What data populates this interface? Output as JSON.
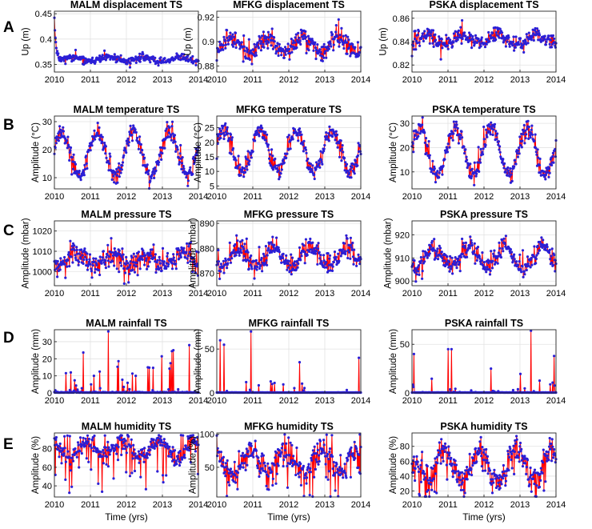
{
  "figure": {
    "x_axis_label": "Time (yrs)",
    "colors": {
      "line": "#ff0000",
      "marker": "#2b1fd6",
      "grid": "#e2e2e2",
      "axis": "#262626"
    }
  },
  "chart_data": [
    {
      "row": "A",
      "type": "line",
      "title": "MALM displacement TS",
      "ylabel": "Up (m)",
      "xlim": [
        2010,
        2014
      ],
      "ylim": [
        0.335,
        0.455
      ],
      "yticks": [
        0.35,
        0.4,
        0.45
      ],
      "ytick_labels": [
        "0.35",
        "0.4",
        "0.45"
      ],
      "xticks": [
        2010,
        2011,
        2012,
        2013,
        2014
      ],
      "xtick_labels": [
        "2010",
        "2011",
        "2012",
        "2013",
        "2014"
      ],
      "kind": "disp",
      "mean": 0.36,
      "amp": 0.004,
      "phase": 0.5,
      "noise": 0.005,
      "spike": 0.01,
      "init": 0.442,
      "tau": 0.05,
      "seed": 11,
      "series": [
        {
          "name": "MALM",
          "x": [
            2010.0,
            2010.1,
            2010.2,
            2010.5,
            2011.0,
            2011.5,
            2012.0,
            2012.5,
            2013.0,
            2013.5,
            2014.0
          ],
          "y": [
            0.442,
            0.372,
            0.365,
            0.36,
            0.362,
            0.358,
            0.361,
            0.357,
            0.362,
            0.356,
            0.36
          ]
        }
      ]
    },
    {
      "row": "A",
      "type": "line",
      "title": "MFKG displacement TS",
      "ylabel": "Up (m)",
      "xlim": [
        2010,
        2014
      ],
      "ylim": [
        0.875,
        0.925
      ],
      "yticks": [
        0.88,
        0.9,
        0.92
      ],
      "ytick_labels": [
        "0.88",
        "0.9",
        "0.92"
      ],
      "xticks": [
        2010,
        2011,
        2012,
        2013,
        2014
      ],
      "xtick_labels": [
        "2010",
        "2011",
        "2012",
        "2013",
        "2014"
      ],
      "kind": "disp",
      "mean": 0.897,
      "amp": 0.006,
      "phase": 0.4,
      "noise": 0.005,
      "spike": 0.01,
      "seed": 12,
      "series": [
        {
          "name": "MFKG",
          "x": [
            2010.0,
            2010.5,
            2011.0,
            2011.5,
            2012.0,
            2012.5,
            2013.0,
            2013.5,
            2014.0
          ],
          "y": [
            0.9,
            0.89,
            0.9,
            0.892,
            0.9,
            0.893,
            0.901,
            0.894,
            0.905
          ]
        }
      ]
    },
    {
      "row": "A",
      "type": "line",
      "title": "PSKA displacement TS",
      "ylabel": "Up (m)",
      "xlim": [
        2010,
        2014
      ],
      "ylim": [
        0.814,
        0.866
      ],
      "yticks": [
        0.82,
        0.84,
        0.86
      ],
      "ytick_labels": [
        "0.82",
        "0.84",
        "0.86"
      ],
      "xticks": [
        2010,
        2011,
        2012,
        2013,
        2014
      ],
      "xtick_labels": [
        "2010",
        "2011",
        "2012",
        "2013",
        "2014"
      ],
      "kind": "disp",
      "mean": 0.842,
      "amp": 0.004,
      "phase": 0.4,
      "noise": 0.0045,
      "spike": 0.009,
      "seed": 13,
      "series": [
        {
          "name": "PSKA",
          "x": [
            2010.0,
            2010.5,
            2011.0,
            2011.5,
            2012.0,
            2012.5,
            2013.0,
            2013.5,
            2014.0
          ],
          "y": [
            0.845,
            0.84,
            0.844,
            0.838,
            0.844,
            0.838,
            0.845,
            0.839,
            0.846
          ]
        }
      ]
    },
    {
      "row": "B",
      "type": "line",
      "title": "MALM temperature TS",
      "ylabel": "Amplitude (°C)",
      "xlim": [
        2010,
        2014
      ],
      "ylim": [
        6,
        32
      ],
      "yticks": [
        10,
        20,
        30
      ],
      "ytick_labels": [
        "10",
        "20",
        "30"
      ],
      "xticks": [
        2010,
        2011,
        2012,
        2013,
        2014
      ],
      "xtick_labels": [
        "2010",
        "2011",
        "2012",
        "2013",
        "2014"
      ],
      "kind": "temp",
      "mean": 18.5,
      "amp": 8,
      "phase": 0.2,
      "noise": 2.2,
      "spike": 4,
      "seed": 21,
      "series": [
        {
          "name": "MALM",
          "x": [
            2010.0,
            2010.4,
            2010.85,
            2011.4,
            2011.85,
            2012.4,
            2012.85,
            2013.4,
            2013.85,
            2014.0
          ],
          "y": [
            25,
            11,
            27,
            11,
            27,
            11,
            27,
            11,
            22,
            25
          ]
        }
      ]
    },
    {
      "row": "B",
      "type": "line",
      "title": "MFKG temperature TS",
      "ylabel": "Amplitude (°C)",
      "xlim": [
        2010,
        2014
      ],
      "ylim": [
        4,
        29
      ],
      "yticks": [
        5,
        10,
        15,
        20,
        25
      ],
      "ytick_labels": [
        "5",
        "10",
        "15",
        "20",
        "25"
      ],
      "xticks": [
        2010,
        2011,
        2012,
        2013,
        2014
      ],
      "xtick_labels": [
        "2010",
        "2011",
        "2012",
        "2013",
        "2014"
      ],
      "kind": "temp",
      "mean": 17,
      "amp": 7,
      "phase": 0.2,
      "noise": 2.2,
      "spike": 5,
      "seed": 22,
      "series": [
        {
          "name": "MFKG",
          "x": [
            2010.0,
            2010.4,
            2010.85,
            2011.4,
            2011.85,
            2012.4,
            2012.85,
            2013.4,
            2013.85,
            2014.0
          ],
          "y": [
            23,
            10,
            24,
            10,
            24,
            10,
            24,
            10,
            23,
            25
          ]
        }
      ]
    },
    {
      "row": "B",
      "type": "line",
      "title": "PSKA temperature TS",
      "ylabel": "Amplitude (°C)",
      "xlim": [
        2010,
        2014
      ],
      "ylim": [
        3,
        33
      ],
      "yticks": [
        10,
        20,
        30
      ],
      "ytick_labels": [
        "10",
        "20",
        "30"
      ],
      "xticks": [
        2010,
        2011,
        2012,
        2013,
        2014
      ],
      "xtick_labels": [
        "2010",
        "2011",
        "2012",
        "2013",
        "2014"
      ],
      "kind": "temp",
      "mean": 18.5,
      "amp": 9.5,
      "phase": 0.2,
      "noise": 2.5,
      "spike": 5,
      "seed": 23,
      "series": [
        {
          "name": "PSKA",
          "x": [
            2010.0,
            2010.4,
            2010.85,
            2011.4,
            2011.85,
            2012.4,
            2012.85,
            2013.4,
            2013.85,
            2014.0
          ],
          "y": [
            28,
            9,
            28,
            9,
            29,
            9,
            28,
            10,
            26,
            28
          ]
        }
      ]
    },
    {
      "row": "C",
      "type": "line",
      "title": "MALM pressure TS",
      "ylabel": "Amplitude (mbar)",
      "xlim": [
        2010,
        2014
      ],
      "ylim": [
        993,
        1025
      ],
      "yticks": [
        1000,
        1010,
        1020
      ],
      "ytick_labels": [
        "1000",
        "1010",
        "1020"
      ],
      "xticks": [
        2010,
        2011,
        2012,
        2013,
        2014
      ],
      "xtick_labels": [
        "2010",
        "2011",
        "2012",
        "2013",
        "2014"
      ],
      "kind": "pres",
      "mean": 1006,
      "amp": 3.5,
      "phase": 0.6,
      "noise": 4,
      "spike": 7,
      "seed": 31,
      "series": [
        {
          "name": "MALM",
          "x": [
            2010.0,
            2010.5,
            2011.0,
            2011.5,
            2012.0,
            2012.5,
            2013.0,
            2013.5,
            2014.0
          ],
          "y": [
            1003,
            1010,
            1002,
            1009,
            1003,
            1010,
            1004,
            1011,
            1004
          ]
        }
      ]
    },
    {
      "row": "C",
      "type": "line",
      "title": "MFKG pressure TS",
      "ylabel": "Amplitude (mbar)",
      "xlim": [
        2010,
        2014
      ],
      "ylim": [
        865,
        891
      ],
      "yticks": [
        870,
        880,
        890
      ],
      "ytick_labels": [
        "870",
        "880",
        "890"
      ],
      "xticks": [
        2010,
        2011,
        2012,
        2013,
        2014
      ],
      "xtick_labels": [
        "2010",
        "2011",
        "2012",
        "2013",
        "2014"
      ],
      "kind": "pres",
      "mean": 876.5,
      "amp": 4,
      "phase": 0.6,
      "noise": 3,
      "spike": 5,
      "seed": 32,
      "series": [
        {
          "name": "MFKG",
          "x": [
            2010.0,
            2010.5,
            2011.0,
            2011.5,
            2012.0,
            2012.5,
            2013.0,
            2013.5,
            2014.0
          ],
          "y": [
            874,
            881,
            873,
            880,
            873,
            880,
            874,
            881,
            874
          ]
        }
      ]
    },
    {
      "row": "C",
      "type": "line",
      "title": "PSKA pressure TS",
      "ylabel": "Amplitude (mbar)",
      "xlim": [
        2010,
        2014
      ],
      "ylim": [
        898,
        926
      ],
      "yticks": [
        900,
        910,
        920
      ],
      "ytick_labels": [
        "900",
        "910",
        "920"
      ],
      "xticks": [
        2010,
        2011,
        2012,
        2013,
        2014
      ],
      "xtick_labels": [
        "2010",
        "2011",
        "2012",
        "2013",
        "2014"
      ],
      "kind": "pres",
      "mean": 910.5,
      "amp": 4.5,
      "phase": 0.6,
      "noise": 3.2,
      "spike": 5,
      "seed": 33,
      "series": [
        {
          "name": "PSKA",
          "x": [
            2010.0,
            2010.5,
            2011.0,
            2011.5,
            2012.0,
            2012.5,
            2013.0,
            2013.5,
            2014.0
          ],
          "y": [
            907,
            916,
            906,
            915,
            906,
            915,
            907,
            916,
            908
          ]
        }
      ]
    },
    {
      "row": "D",
      "type": "line",
      "title": "MALM rainfall TS",
      "ylabel": "Amplitude (mm)",
      "xlim": [
        2010,
        2014
      ],
      "ylim": [
        0,
        37
      ],
      "yticks": [
        0,
        10,
        20,
        30
      ],
      "ytick_labels": [
        "0",
        "10",
        "20",
        "30"
      ],
      "xticks": [
        2010,
        2011,
        2012,
        2013,
        2014
      ],
      "xtick_labels": [
        "2010",
        "2011",
        "2012",
        "2013",
        "2014"
      ],
      "kind": "rain",
      "prob": 0.14,
      "scale": 7,
      "maxv": 36,
      "seed": 41,
      "series": [
        {
          "name": "MALM",
          "x": [
            2010.45,
            2011.1,
            2011.5,
            2012.6,
            2013.3,
            2013.75
          ],
          "y": [
            12,
            10,
            36,
            15,
            25,
            28
          ]
        }
      ]
    },
    {
      "row": "D",
      "type": "line",
      "title": "MFKG rainfall TS",
      "ylabel": "Amplitude (mm)",
      "xlim": [
        2010,
        2014
      ],
      "ylim": [
        0,
        72
      ],
      "yticks": [
        0,
        50
      ],
      "ytick_labels": [
        "0",
        "50"
      ],
      "xticks": [
        2010,
        2011,
        2012,
        2013,
        2014
      ],
      "xtick_labels": [
        "2010",
        "2011",
        "2012",
        "2013",
        "2014"
      ],
      "kind": "rain",
      "prob": 0.08,
      "scale": 7,
      "maxv": 70,
      "seed": 42,
      "series": [
        {
          "name": "MFKG",
          "x": [
            2010.1,
            2010.2,
            2010.95,
            2012.3,
            2013.95
          ],
          "y": [
            60,
            55,
            70,
            35,
            40
          ]
        }
      ]
    },
    {
      "row": "D",
      "type": "line",
      "title": "PSKA rainfall TS",
      "ylabel": "Amplitude (mm)",
      "xlim": [
        2010,
        2014
      ],
      "ylim": [
        0,
        65
      ],
      "yticks": [
        0,
        50
      ],
      "ytick_labels": [
        "0",
        "50"
      ],
      "xticks": [
        2010,
        2011,
        2012,
        2013,
        2014
      ],
      "xtick_labels": [
        "2010",
        "2011",
        "2012",
        "2013",
        "2014"
      ],
      "kind": "rain",
      "prob": 0.07,
      "scale": 6,
      "maxv": 64,
      "seed": 43,
      "series": [
        {
          "name": "PSKA",
          "x": [
            2010.05,
            2011.0,
            2011.1,
            2012.2,
            2013.3,
            2013.95
          ],
          "y": [
            40,
            45,
            45,
            25,
            64,
            38
          ]
        }
      ]
    },
    {
      "row": "E",
      "type": "line",
      "title": "MALM humidity TS",
      "ylabel": "Amplitude (%)",
      "xlim": [
        2010,
        2014
      ],
      "ylim": [
        28,
        97
      ],
      "yticks": [
        40,
        60,
        80
      ],
      "ytick_labels": [
        "40",
        "60",
        "80"
      ],
      "xticks": [
        2010,
        2011,
        2012,
        2013,
        2014
      ],
      "xtick_labels": [
        "2010",
        "2011",
        "2012",
        "2013",
        "2014"
      ],
      "kind": "humid",
      "mean": 80,
      "amp": 9,
      "phase": 0.9,
      "noise": 7,
      "spike": 45,
      "cap": 95,
      "seed": 51,
      "series": [
        {
          "name": "MALM",
          "x": [
            2010.0,
            2010.5,
            2011.0,
            2011.5,
            2012.0,
            2012.5,
            2013.0,
            2013.5,
            2014.0
          ],
          "y": [
            88,
            70,
            90,
            70,
            90,
            68,
            88,
            65,
            80
          ]
        }
      ]
    },
    {
      "row": "E",
      "type": "line",
      "title": "MFKG humidity TS",
      "ylabel": "Amplitude (%)",
      "xlim": [
        2010,
        2014
      ],
      "ylim": [
        5,
        102
      ],
      "yticks": [
        50,
        100
      ],
      "ytick_labels": [
        "50",
        "100"
      ],
      "xticks": [
        2010,
        2011,
        2012,
        2013,
        2014
      ],
      "xtick_labels": [
        "2010",
        "2011",
        "2012",
        "2013",
        "2014"
      ],
      "kind": "humid",
      "mean": 60,
      "amp": 16,
      "phase": 0.9,
      "noise": 14,
      "spike": 35,
      "cap": 100,
      "seed": 52,
      "series": [
        {
          "name": "MFKG",
          "x": [
            2010.0,
            2010.5,
            2011.0,
            2011.5,
            2012.0,
            2012.5,
            2013.0,
            2013.5,
            2014.0
          ],
          "y": [
            85,
            45,
            80,
            42,
            75,
            40,
            70,
            40,
            60
          ]
        }
      ]
    },
    {
      "row": "E",
      "type": "line",
      "title": "PSKA humidity TS",
      "ylabel": "Amplitude (%)",
      "xlim": [
        2010,
        2014
      ],
      "ylim": [
        12,
        98
      ],
      "yticks": [
        20,
        40,
        60,
        80
      ],
      "ytick_labels": [
        "20",
        "40",
        "60",
        "80"
      ],
      "xticks": [
        2010,
        2011,
        2012,
        2013,
        2014
      ],
      "xtick_labels": [
        "2010",
        "2011",
        "2012",
        "2013",
        "2014"
      ],
      "kind": "humid",
      "mean": 55,
      "amp": 20,
      "phase": 0.9,
      "noise": 13,
      "spike": 30,
      "cap": 96,
      "seed": 53,
      "series": [
        {
          "name": "PSKA",
          "x": [
            2010.0,
            2010.5,
            2011.0,
            2011.5,
            2012.0,
            2012.5,
            2013.0,
            2013.5,
            2014.0
          ],
          "y": [
            75,
            30,
            80,
            35,
            75,
            28,
            70,
            30,
            40
          ]
        }
      ]
    }
  ],
  "row_labels": [
    "A",
    "B",
    "C",
    "D",
    "E"
  ]
}
